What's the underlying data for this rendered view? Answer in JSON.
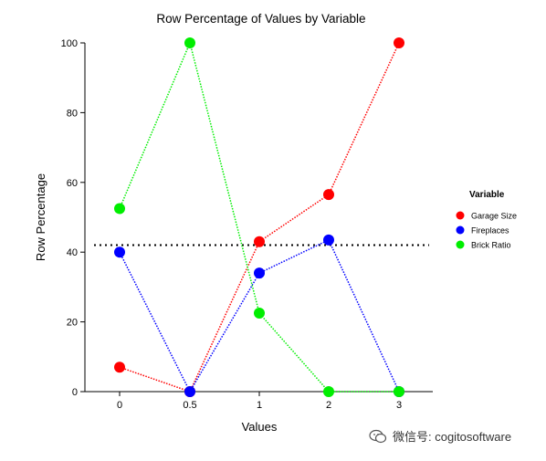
{
  "chart_data": {
    "type": "line",
    "title": "Row Percentage of Values by Variable",
    "xlabel": "Values",
    "ylabel": "Row Percentage",
    "categories": [
      "0",
      "0.5",
      "1",
      "2",
      "3"
    ],
    "ylim": [
      0,
      100
    ],
    "yticks": [
      0,
      20,
      40,
      60,
      80,
      100
    ],
    "reference_line": 42,
    "grid": false,
    "legend": {
      "title": "Variable",
      "position": "right"
    },
    "series": [
      {
        "name": "Garage Size",
        "color": "#ff0000",
        "values": [
          7,
          0,
          43,
          56.5,
          100
        ]
      },
      {
        "name": "Fireplaces",
        "color": "#0000ff",
        "values": [
          40,
          0,
          34,
          43.5,
          0
        ]
      },
      {
        "name": "Brick Ratio",
        "color": "#00ee00",
        "values": [
          52.5,
          100,
          22.5,
          0,
          0
        ]
      }
    ]
  },
  "watermark": {
    "text": "微信号: cogitosoftware",
    "icon": "wechat-icon"
  }
}
